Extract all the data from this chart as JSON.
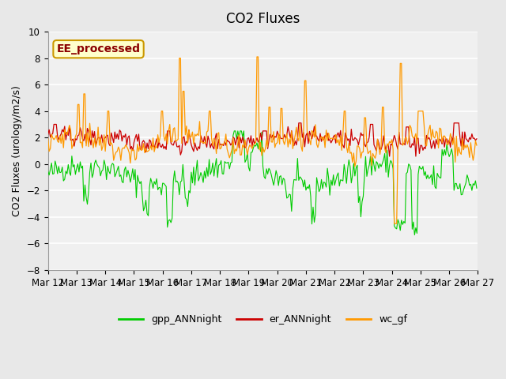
{
  "title": "CO2 Fluxes",
  "ylabel": "CO2 Fluxes (urology/m2/s)",
  "xlabels": [
    "Mar 12",
    "Mar 13",
    "Mar 14",
    "Mar 15",
    "Mar 16",
    "Mar 17",
    "Mar 18",
    "Mar 19",
    "Mar 20",
    "Mar 21",
    "Mar 22",
    "Mar 23",
    "Mar 24",
    "Mar 25",
    "Mar 26",
    "Mar 27"
  ],
  "ylim": [
    -8,
    10
  ],
  "yticks": [
    -8,
    -6,
    -4,
    -2,
    0,
    2,
    4,
    6,
    8,
    10
  ],
  "n_points": 360,
  "watermark": "EE_processed",
  "legend_labels": [
    "gpp_ANNnight",
    "er_ANNnight",
    "wc_gf"
  ],
  "colors": {
    "gpp": "#00cc00",
    "er": "#cc0000",
    "wc": "#ff9900"
  },
  "bg_color": "#e8e8e8",
  "plot_bg": "#f0f0f0",
  "title_fontsize": 12,
  "label_fontsize": 9,
  "tick_fontsize": 8.5
}
